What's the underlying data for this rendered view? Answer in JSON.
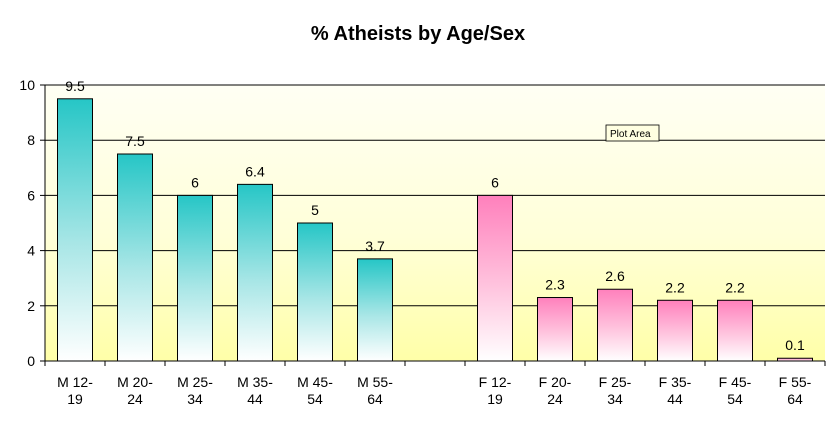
{
  "chart_data": {
    "type": "bar",
    "title": "% Atheists by Age/Sex",
    "xlabel": "",
    "ylabel": "",
    "ylim": [
      0,
      10
    ],
    "yticks": [
      0,
      2,
      4,
      6,
      8,
      10
    ],
    "grid": true,
    "categories": [
      [
        "M 12-",
        "19"
      ],
      [
        "M 20-",
        "24"
      ],
      [
        "M 25-",
        "34"
      ],
      [
        "M 35-",
        "44"
      ],
      [
        "M 45-",
        "54"
      ],
      [
        "M 55-",
        "64"
      ],
      [
        "",
        ""
      ],
      [
        "F 12-",
        "19"
      ],
      [
        "F 20-",
        "24"
      ],
      [
        "F 25-",
        "34"
      ],
      [
        "F 35-",
        "44"
      ],
      [
        "F 45-",
        "54"
      ],
      [
        "F 55-",
        "64"
      ]
    ],
    "values": [
      9.5,
      7.5,
      6,
      6.4,
      5,
      3.7,
      null,
      6,
      2.3,
      2.6,
      2.2,
      2.2,
      0.1
    ],
    "data_labels": [
      "9.5",
      "7.5",
      "6",
      "6.4",
      "5",
      "3.7",
      "",
      "6",
      "2.3",
      "2.6",
      "2.2",
      "2.2",
      "0.1"
    ],
    "colors": {
      "male": "#2ec8c8",
      "female": "#ff88c0",
      "plot_band_light": "#fffff0",
      "plot_band_yellow": "#ffffc0",
      "gridline": "#000000"
    },
    "tooltip": "Plot Area"
  }
}
